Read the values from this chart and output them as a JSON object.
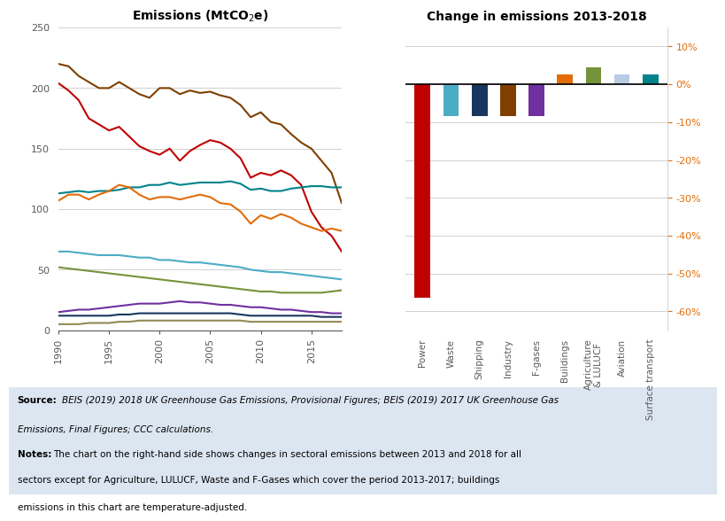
{
  "title_left": "Emissions (MtCO₂e)",
  "title_right": "Change in emissions 2013-2018",
  "years": [
    1990,
    1991,
    1992,
    1993,
    1994,
    1995,
    1996,
    1997,
    1998,
    1999,
    2000,
    2001,
    2002,
    2003,
    2004,
    2005,
    2006,
    2007,
    2008,
    2009,
    2010,
    2011,
    2012,
    2013,
    2014,
    2015,
    2016,
    2017,
    2018
  ],
  "lines": [
    {
      "name": "Power",
      "color": "#c00000",
      "data": [
        204,
        198,
        190,
        175,
        170,
        165,
        168,
        160,
        152,
        148,
        145,
        150,
        140,
        148,
        153,
        157,
        155,
        150,
        142,
        126,
        130,
        128,
        132,
        128,
        120,
        98,
        85,
        78,
        65
      ]
    },
    {
      "name": "Buildings",
      "color": "#7f3f00",
      "data": [
        220,
        218,
        210,
        205,
        200,
        200,
        205,
        200,
        195,
        192,
        200,
        200,
        195,
        198,
        196,
        197,
        194,
        192,
        186,
        176,
        180,
        172,
        170,
        162,
        155,
        150,
        140,
        130,
        105
      ]
    },
    {
      "name": "Surface transport",
      "color": "#00838a",
      "data": [
        113,
        114,
        115,
        114,
        115,
        115,
        116,
        118,
        118,
        120,
        120,
        122,
        120,
        121,
        122,
        122,
        122,
        123,
        121,
        116,
        117,
        115,
        115,
        117,
        118,
        119,
        119,
        118,
        118
      ]
    },
    {
      "name": "Industry",
      "color": "#e36c09",
      "data": [
        107,
        112,
        112,
        108,
        112,
        115,
        120,
        118,
        112,
        108,
        110,
        110,
        108,
        110,
        112,
        110,
        105,
        104,
        98,
        88,
        95,
        92,
        96,
        93,
        88,
        85,
        82,
        84,
        82
      ]
    },
    {
      "name": "Agriculture",
      "color": "#4bacc6",
      "data": [
        65,
        65,
        64,
        63,
        62,
        62,
        62,
        61,
        60,
        60,
        58,
        58,
        57,
        56,
        56,
        55,
        54,
        53,
        52,
        50,
        49,
        48,
        48,
        47,
        46,
        45,
        44,
        43,
        42
      ]
    },
    {
      "name": "Waste",
      "color": "#76933c",
      "data": [
        52,
        51,
        50,
        49,
        48,
        47,
        46,
        45,
        44,
        43,
        42,
        41,
        40,
        39,
        38,
        37,
        36,
        35,
        34,
        33,
        32,
        32,
        31,
        31,
        31,
        31,
        31,
        32,
        33
      ]
    },
    {
      "name": "F-gases",
      "color": "#7030a0",
      "data": [
        15,
        16,
        17,
        17,
        18,
        19,
        20,
        21,
        22,
        22,
        22,
        23,
        24,
        23,
        23,
        22,
        21,
        21,
        20,
        19,
        19,
        18,
        17,
        17,
        16,
        15,
        15,
        14,
        14
      ]
    },
    {
      "name": "Shipping",
      "color": "#17375e",
      "data": [
        12,
        12,
        12,
        12,
        12,
        12,
        13,
        13,
        14,
        14,
        14,
        14,
        14,
        14,
        14,
        14,
        14,
        14,
        13,
        12,
        12,
        12,
        12,
        12,
        12,
        12,
        11,
        11,
        11
      ]
    },
    {
      "name": "Aviation",
      "color": "#938953",
      "data": [
        5,
        5,
        5,
        6,
        6,
        6,
        7,
        7,
        8,
        8,
        8,
        8,
        8,
        8,
        8,
        8,
        8,
        8,
        8,
        7,
        7,
        7,
        7,
        7,
        7,
        7,
        7,
        7,
        7
      ]
    }
  ],
  "bar_categories": [
    "Power",
    "Waste",
    "Shipping",
    "Industry",
    "F-gases",
    "Buildings",
    "Agriculture\n& LULUCF",
    "Aviation",
    "Surface transport"
  ],
  "bar_values": [
    -0.565,
    -0.085,
    -0.085,
    -0.085,
    -0.085,
    0.025,
    0.045,
    0.025,
    0.025
  ],
  "bar_colors": [
    "#c00000",
    "#4bacc6",
    "#17375e",
    "#7f3f00",
    "#7030a0",
    "#e36c09",
    "#76933c",
    "#b8cce4",
    "#00838a"
  ],
  "ylim_left": [
    0,
    250
  ],
  "ylim_right": [
    -0.65,
    0.15
  ],
  "yticks_left": [
    0,
    50,
    100,
    150,
    200,
    250
  ],
  "yticks_right": [
    -0.6,
    -0.5,
    -0.4,
    -0.3,
    -0.2,
    -0.1,
    0.0,
    0.1
  ],
  "background_color": "#ffffff",
  "footer_bg": "#dce6f1"
}
